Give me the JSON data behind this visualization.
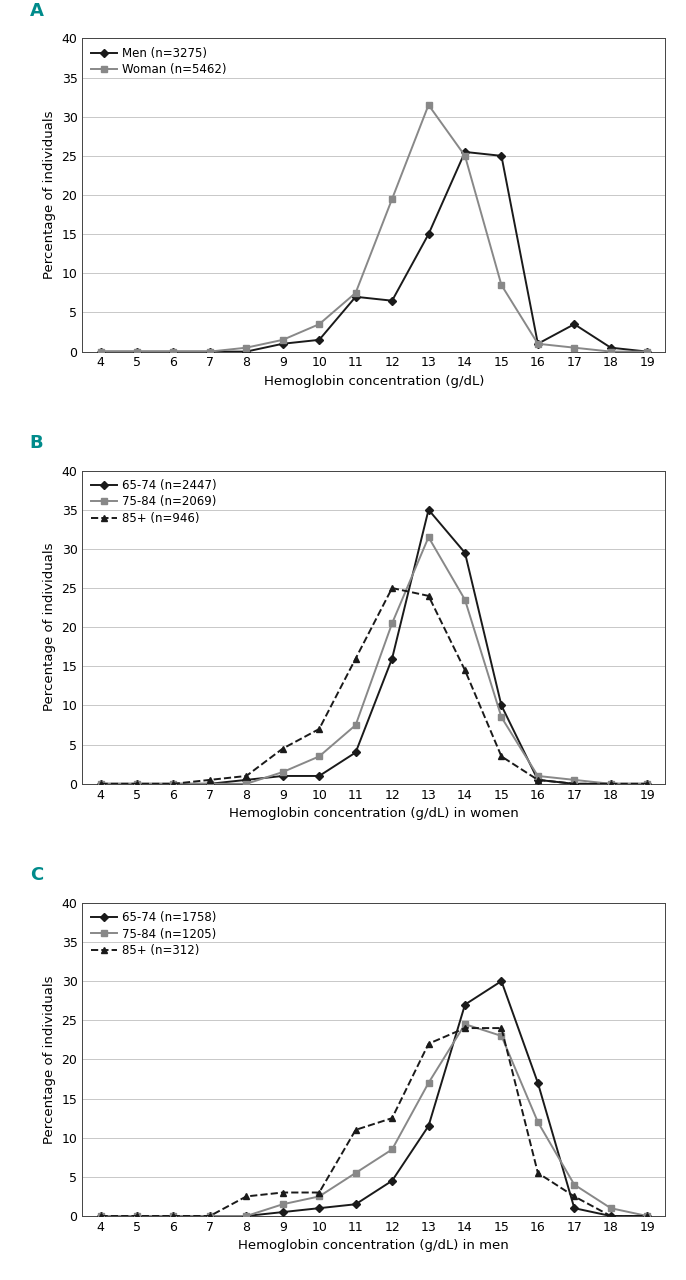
{
  "x": [
    4,
    5,
    6,
    7,
    8,
    9,
    10,
    11,
    12,
    13,
    14,
    15,
    16,
    17,
    18,
    19
  ],
  "panel_A": {
    "label": "A",
    "xlabel": "Hemoglobin concentration (g/dL)",
    "ylabel": "Percentage of individuals",
    "ylim": [
      0,
      40
    ],
    "yticks": [
      0,
      5,
      10,
      15,
      20,
      25,
      30,
      35,
      40
    ],
    "series": [
      {
        "label": "Men (n=3275)",
        "color": "#1a1a1a",
        "linestyle": "-",
        "marker": "D",
        "markersize": 4,
        "linewidth": 1.4,
        "values": [
          0,
          0,
          0,
          0,
          0,
          1,
          1.5,
          7,
          6.5,
          15,
          25.5,
          25,
          1,
          3.5,
          0.5,
          0
        ]
      },
      {
        "label": "Woman (n=5462)",
        "color": "#888888",
        "linestyle": "-",
        "marker": "s",
        "markersize": 4,
        "linewidth": 1.4,
        "values": [
          0,
          0,
          0,
          0,
          0.5,
          1.5,
          3.5,
          7.5,
          19.5,
          31.5,
          25,
          8.5,
          1,
          0.5,
          0,
          0
        ]
      }
    ]
  },
  "panel_B": {
    "label": "B",
    "xlabel": "Hemoglobin concentration (g/dL) in women",
    "ylabel": "Percentage of individuals",
    "ylim": [
      0,
      40
    ],
    "yticks": [
      0,
      5,
      10,
      15,
      20,
      25,
      30,
      35,
      40
    ],
    "series": [
      {
        "label": "65-74 (n=2447)",
        "color": "#1a1a1a",
        "linestyle": "-",
        "marker": "D",
        "markersize": 4,
        "linewidth": 1.4,
        "values": [
          0,
          0,
          0,
          0,
          0.5,
          1,
          1,
          4,
          16,
          35,
          29.5,
          10,
          0.5,
          0,
          0,
          0
        ]
      },
      {
        "label": "75-84 (n=2069)",
        "color": "#888888",
        "linestyle": "-",
        "marker": "s",
        "markersize": 4,
        "linewidth": 1.4,
        "values": [
          0,
          0,
          0,
          0,
          0,
          1.5,
          3.5,
          7.5,
          20.5,
          31.5,
          23.5,
          8.5,
          1,
          0.5,
          0,
          0
        ]
      },
      {
        "label": "85+ (n=946)",
        "color": "#1a1a1a",
        "linestyle": "--",
        "marker": "^",
        "markersize": 4,
        "linewidth": 1.4,
        "values": [
          0,
          0,
          0,
          0.5,
          1,
          4.5,
          7,
          16,
          25,
          24,
          14.5,
          3.5,
          0.5,
          0,
          0,
          0
        ]
      }
    ]
  },
  "panel_C": {
    "label": "C",
    "xlabel": "Hemoglobin concentration (g/dL) in men",
    "ylabel": "Percentage of individuals",
    "ylim": [
      0,
      40
    ],
    "yticks": [
      0,
      5,
      10,
      15,
      20,
      25,
      30,
      35,
      40
    ],
    "series": [
      {
        "label": "65-74 (n=1758)",
        "color": "#1a1a1a",
        "linestyle": "-",
        "marker": "D",
        "markersize": 4,
        "linewidth": 1.4,
        "values": [
          0,
          0,
          0,
          0,
          0,
          0.5,
          1,
          1.5,
          4.5,
          11.5,
          27,
          30,
          17,
          1,
          0,
          0
        ]
      },
      {
        "label": "75-84 (n=1205)",
        "color": "#888888",
        "linestyle": "-",
        "marker": "s",
        "markersize": 4,
        "linewidth": 1.4,
        "values": [
          0,
          0,
          0,
          0,
          0,
          1.5,
          2.5,
          5.5,
          8.5,
          17,
          24.5,
          23,
          12,
          4,
          1,
          0
        ]
      },
      {
        "label": "85+ (n=312)",
        "color": "#1a1a1a",
        "linestyle": "--",
        "marker": "^",
        "markersize": 4,
        "linewidth": 1.4,
        "values": [
          0,
          0,
          0,
          0,
          2.5,
          3,
          3,
          11,
          12.5,
          22,
          24,
          24,
          5.5,
          2.5,
          0,
          0
        ]
      }
    ]
  },
  "label_color": "#008B8B",
  "label_fontsize": 13,
  "tick_fontsize": 9,
  "axis_label_fontsize": 9.5,
  "legend_fontsize": 8.5,
  "background_color": "#ffffff",
  "grid_color": "#c8c8c8"
}
